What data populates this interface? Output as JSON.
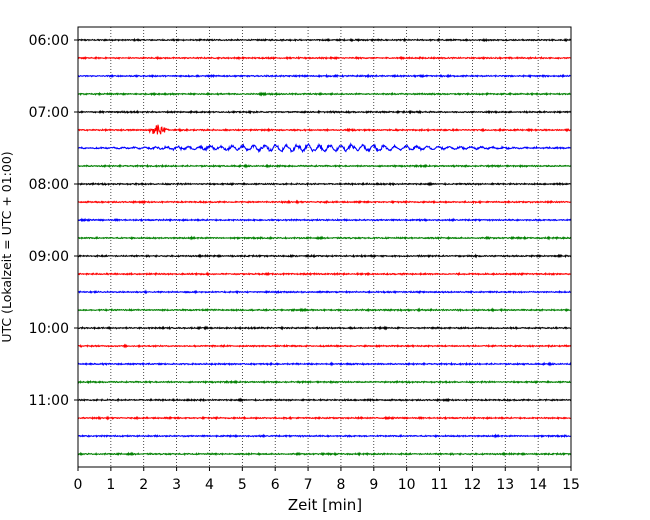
{
  "chart_data": {
    "type": "line",
    "subtype": "helicorder seismogram",
    "title": "",
    "xlabel": "Zeit  [min]",
    "ylabel": "UTC (Lokalzeit = UTC + 01:00)",
    "xlim": [
      0,
      15
    ],
    "x_ticks": [
      "0",
      "1",
      "2",
      "3",
      "4",
      "5",
      "6",
      "7",
      "8",
      "9",
      "10",
      "11",
      "12",
      "13",
      "14",
      "15"
    ],
    "y_ticks": [
      "06:00",
      "07:00",
      "08:00",
      "09:00",
      "10:00",
      "11:00"
    ],
    "row_minutes": 15,
    "rows_total": 24,
    "trace_color_cycle": [
      "#000000",
      "#ff0000",
      "#0000ff",
      "#008000"
    ],
    "grid": {
      "vertical": true,
      "style": "dotted"
    },
    "noise_amplitude_units": 1,
    "events": [
      {
        "row": 5,
        "minute": 2.45,
        "amplitude": 6,
        "note": "spike"
      },
      {
        "row": 6,
        "minute": 7.3,
        "amplitude": 5,
        "note": "elevated noise segment"
      }
    ]
  }
}
